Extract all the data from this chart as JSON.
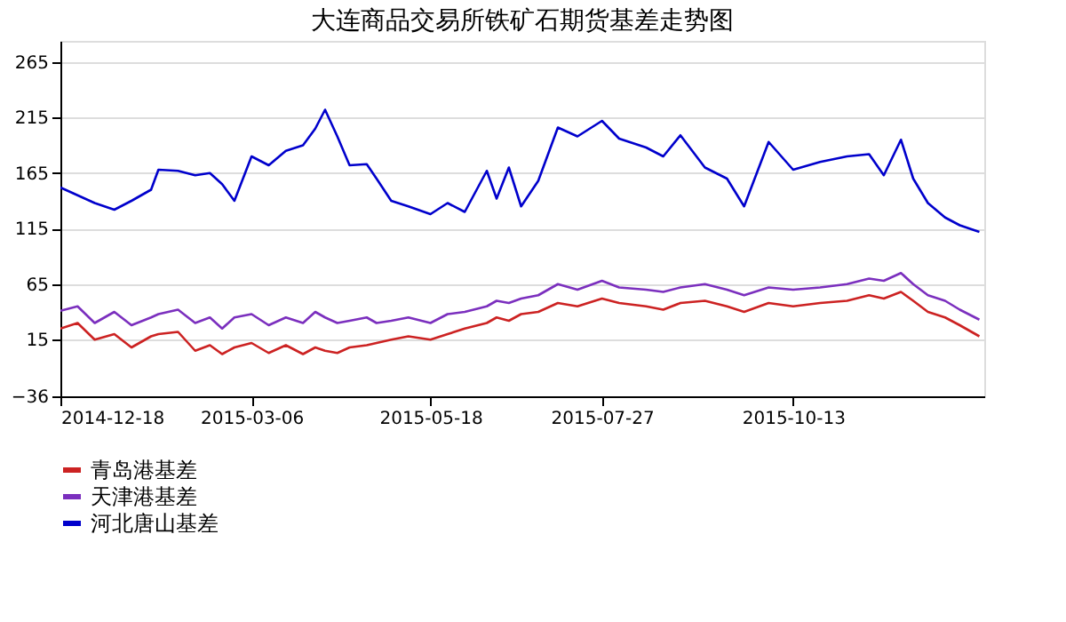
{
  "chart_data": {
    "type": "line",
    "title": "大连商品交易所铁矿石期货基差走势图",
    "x": [
      "2014-12-18",
      "2014-12-25",
      "2015-01-01",
      "2015-01-09",
      "2015-01-16",
      "2015-01-24",
      "2015-01-27",
      "2015-02-04",
      "2015-02-11",
      "2015-02-17",
      "2015-02-22",
      "2015-02-27",
      "2015-03-06",
      "2015-03-13",
      "2015-03-20",
      "2015-03-27",
      "2015-04-01",
      "2015-04-05",
      "2015-04-10",
      "2015-04-15",
      "2015-04-22",
      "2015-04-26",
      "2015-05-02",
      "2015-05-09",
      "2015-05-18",
      "2015-05-25",
      "2015-06-01",
      "2015-06-10",
      "2015-06-14",
      "2015-06-19",
      "2015-06-24",
      "2015-07-01",
      "2015-07-09",
      "2015-07-17",
      "2015-07-27",
      "2015-08-03",
      "2015-08-14",
      "2015-08-21",
      "2015-08-28",
      "2015-09-07",
      "2015-09-16",
      "2015-09-23",
      "2015-10-03",
      "2015-10-13",
      "2015-10-24",
      "2015-11-04",
      "2015-11-13",
      "2015-11-19",
      "2015-11-26",
      "2015-12-01",
      "2015-12-07",
      "2015-12-14",
      "2015-12-20",
      "2015-12-28"
    ],
    "series": [
      {
        "name": "青岛港基差",
        "color": "#cc2222",
        "values": [
          25,
          30,
          15,
          20,
          8,
          18,
          20,
          22,
          5,
          10,
          2,
          8,
          12,
          3,
          10,
          2,
          8,
          5,
          3,
          8,
          10,
          12,
          15,
          18,
          15,
          20,
          25,
          30,
          35,
          32,
          38,
          40,
          48,
          45,
          52,
          48,
          45,
          42,
          48,
          50,
          45,
          40,
          48,
          45,
          48,
          50,
          55,
          52,
          58,
          50,
          40,
          35,
          28,
          18
        ]
      },
      {
        "name": "天津港基差",
        "color": "#7b2fbe",
        "values": [
          41,
          45,
          30,
          40,
          28,
          35,
          38,
          42,
          30,
          35,
          25,
          35,
          38,
          28,
          35,
          30,
          40,
          35,
          30,
          32,
          35,
          30,
          32,
          35,
          30,
          38,
          40,
          45,
          50,
          48,
          52,
          55,
          65,
          60,
          68,
          62,
          60,
          58,
          62,
          65,
          60,
          55,
          62,
          60,
          62,
          65,
          70,
          68,
          75,
          65,
          55,
          50,
          42,
          33
        ]
      },
      {
        "name": "河北唐山基差",
        "color": "#0000cc",
        "values": [
          152,
          145,
          138,
          132,
          140,
          150,
          168,
          167,
          163,
          165,
          155,
          140,
          180,
          172,
          185,
          190,
          205,
          222,
          198,
          172,
          173,
          160,
          140,
          135,
          128,
          138,
          130,
          167,
          142,
          170,
          135,
          158,
          206,
          198,
          212,
          196,
          188,
          180,
          199,
          170,
          160,
          135,
          193,
          168,
          175,
          180,
          182,
          163,
          195,
          160,
          138,
          125,
          118,
          112
        ]
      }
    ],
    "ylim": [
      -36,
      284
    ],
    "yticks": [
      -36,
      15,
      65,
      115,
      165,
      215,
      265
    ],
    "xlim": [
      "2014-12-18",
      "2015-12-30"
    ],
    "xticks": [
      "2014-12-18",
      "2015-03-06",
      "2015-05-18",
      "2015-07-27",
      "2015-10-13"
    ],
    "grid": "y",
    "legend": "bottom",
    "marker": "none",
    "line_style": "solid"
  }
}
